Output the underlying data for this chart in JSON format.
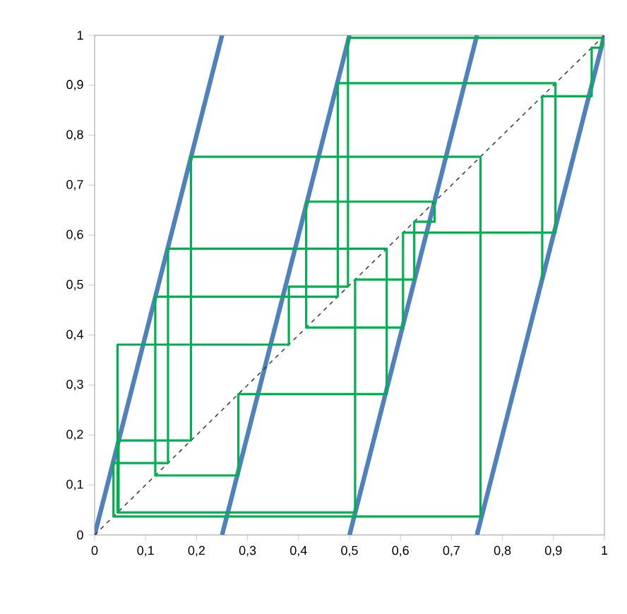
{
  "chart_data": {
    "type": "line",
    "series": [
      {
        "color": "#4f81bd",
        "x": [
          0,
          0.25
        ],
        "values": [
          0,
          1
        ]
      },
      {
        "color": "#4f81bd",
        "x": [
          0.25,
          0.5
        ],
        "values": [
          0,
          1
        ]
      },
      {
        "color": "#4f81bd",
        "x": [
          0.5,
          0.75
        ],
        "values": [
          0,
          1
        ]
      },
      {
        "color": "#4f81bd",
        "x": [
          0.75,
          1
        ],
        "values": [
          0,
          1
        ]
      },
      {
        "color": "#404040",
        "line_style": "dashed",
        "x": [
          0,
          1
        ],
        "values": [
          0,
          1
        ]
      },
      {
        "color": "#00b050",
        "x": [
          0.047,
          0.047,
          0.189,
          0.189,
          0.757,
          0.757,
          0.037,
          0.037,
          0.144,
          0.144,
          0.573,
          0.573,
          0.282,
          0.282,
          0.119,
          0.119,
          0.477,
          0.477,
          0.904,
          0.904,
          0.605,
          0.605,
          0.415,
          0.415,
          0.667,
          0.667,
          0.627,
          0.627,
          0.511,
          0.511,
          0.045,
          0.045,
          0.381,
          0.381,
          0.497,
          0.497,
          0.995,
          0.995,
          0.975,
          0.975,
          0.878,
          0.878
        ],
        "values": [
          0.047,
          0.189,
          0.189,
          0.757,
          0.757,
          0.037,
          0.037,
          0.144,
          0.144,
          0.573,
          0.573,
          0.282,
          0.282,
          0.119,
          0.119,
          0.477,
          0.477,
          0.904,
          0.904,
          0.605,
          0.605,
          0.415,
          0.415,
          0.667,
          0.667,
          0.627,
          0.627,
          0.511,
          0.511,
          0.045,
          0.045,
          0.381,
          0.381,
          0.497,
          0.497,
          0.995,
          0.995,
          0.975,
          0.975,
          0.878,
          0.878,
          0.511
        ]
      }
    ],
    "xlim": [
      0,
      1
    ],
    "ylim": [
      0,
      1
    ],
    "xticks": [
      0,
      {
        "value": 0.1,
        "label": "0,1"
      },
      {
        "value": 0.2,
        "label": "0,2"
      },
      {
        "value": 0.3,
        "label": "0,3"
      },
      {
        "value": 0.4,
        "label": "0,4"
      },
      {
        "value": 0.5,
        "label": "0,5"
      },
      {
        "value": 0.6,
        "label": "0,6"
      },
      {
        "value": 0.7,
        "label": "0,7"
      },
      {
        "value": 0.8,
        "label": "0,8"
      },
      {
        "value": 0.9,
        "label": "0,9"
      },
      1
    ],
    "yticks": [
      0,
      {
        "value": 0.1,
        "label": "0,1"
      },
      {
        "value": 0.2,
        "label": "0,2"
      },
      {
        "value": 0.3,
        "label": "0,3"
      },
      {
        "value": 0.4,
        "label": "0,4"
      },
      {
        "value": 0.5,
        "label": "0,5"
      },
      {
        "value": 0.6,
        "label": "0,6"
      },
      {
        "value": 0.7,
        "label": "0,7"
      },
      {
        "value": 0.8,
        "label": "0,8"
      },
      {
        "value": 0.9,
        "label": "0,9"
      },
      1
    ],
    "grid": false,
    "marker": "none"
  }
}
